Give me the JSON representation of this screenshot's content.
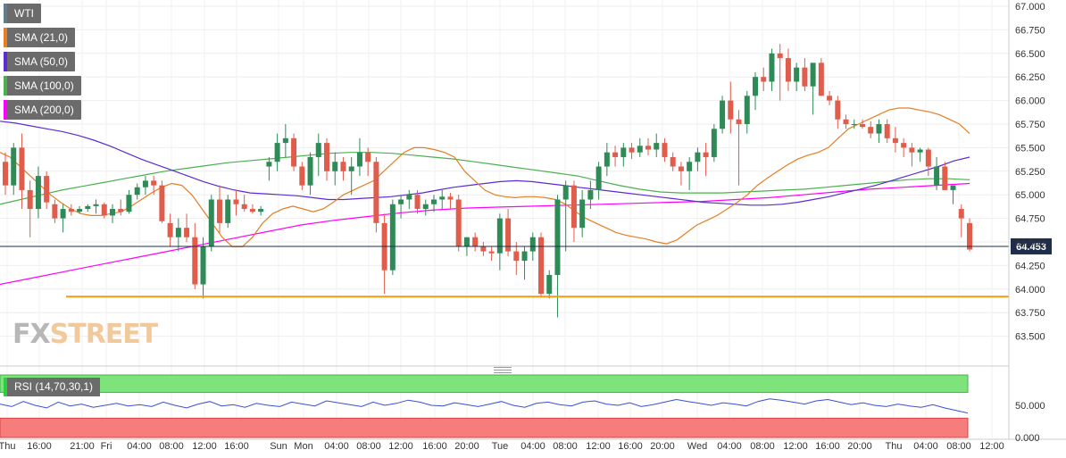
{
  "legend": [
    {
      "label": "WTI",
      "color": "#607d8b"
    },
    {
      "label": "SMA (21,0)",
      "color": "#e67e22"
    },
    {
      "label": "SMA (50,0)",
      "color": "#5b2bd6"
    },
    {
      "label": "SMA (100,0)",
      "color": "#4caf50"
    },
    {
      "label": "SMA (200,0)",
      "color": "#ff00ff"
    }
  ],
  "watermark": {
    "fx": "FX",
    "street": "STREET"
  },
  "chart_data": [
    {
      "type": "candlestick",
      "title": "WTI",
      "ylim": [
        63.25,
        67.0
      ],
      "yticks": [
        "63.500",
        "63.750",
        "64.000",
        "64.250",
        "64.500",
        "64.750",
        "65.000",
        "65.250",
        "65.500",
        "65.750",
        "66.000",
        "66.250",
        "66.500",
        "66.750",
        "67.000"
      ],
      "last_price": "64.453",
      "support_level": 63.92,
      "colors": {
        "up": "#2e8b57",
        "down": "#e05c4b",
        "sma21": "#e67e22",
        "sma50": "#5b2bd6",
        "sma100": "#4caf50",
        "sma200": "#ff00ff",
        "support": "#f39c12"
      },
      "candles": [
        [
          65.35,
          65.45,
          65.0,
          65.1
        ],
        [
          65.1,
          65.55,
          65.0,
          65.5
        ],
        [
          65.5,
          65.65,
          64.85,
          65.05
        ],
        [
          65.05,
          65.15,
          64.55,
          64.85
        ],
        [
          64.85,
          65.3,
          64.75,
          65.2
        ],
        [
          65.2,
          65.25,
          64.85,
          64.92
        ],
        [
          64.9,
          64.95,
          64.7,
          64.75
        ],
        [
          64.75,
          64.9,
          64.6,
          64.85
        ],
        [
          64.85,
          64.9,
          64.78,
          64.82
        ],
        [
          64.82,
          64.88,
          64.8,
          64.85
        ],
        [
          64.85,
          64.9,
          64.82,
          64.88
        ],
        [
          64.88,
          64.95,
          64.8,
          64.9
        ],
        [
          64.9,
          64.92,
          64.75,
          64.78
        ],
        [
          64.78,
          64.9,
          64.7,
          64.85
        ],
        [
          64.85,
          64.95,
          64.78,
          64.82
        ],
        [
          64.82,
          65.05,
          64.8,
          65.0
        ],
        [
          65.0,
          65.12,
          64.95,
          65.08
        ],
        [
          65.08,
          65.2,
          65.0,
          65.15
        ],
        [
          65.15,
          65.2,
          65.0,
          65.1
        ],
        [
          65.1,
          65.15,
          64.7,
          64.72
        ],
        [
          64.7,
          64.8,
          64.45,
          64.55
        ],
        [
          64.55,
          64.75,
          64.4,
          64.65
        ],
        [
          64.65,
          64.8,
          64.5,
          64.55
        ],
        [
          64.55,
          64.7,
          64.0,
          64.05
        ],
        [
          64.05,
          64.55,
          63.9,
          64.45
        ],
        [
          64.45,
          65.0,
          64.4,
          64.95
        ],
        [
          64.95,
          65.1,
          64.6,
          64.7
        ],
        [
          64.7,
          65.0,
          64.65,
          64.95
        ],
        [
          64.95,
          65.05,
          64.78,
          64.9
        ],
        [
          64.9,
          65.0,
          64.82,
          64.85
        ],
        [
          64.85,
          64.9,
          64.8,
          64.82
        ],
        [
          64.82,
          64.88,
          64.78,
          64.85
        ],
        [
          65.3,
          65.4,
          65.15,
          65.35
        ],
        [
          65.35,
          65.65,
          65.25,
          65.55
        ],
        [
          65.55,
          65.75,
          65.4,
          65.6
        ],
        [
          65.6,
          65.65,
          65.25,
          65.3
        ],
        [
          65.3,
          65.35,
          65.05,
          65.1
        ],
        [
          65.1,
          65.45,
          65.0,
          65.4
        ],
        [
          65.4,
          65.65,
          65.2,
          65.55
        ],
        [
          65.55,
          65.6,
          65.15,
          65.25
        ],
        [
          65.25,
          65.45,
          65.1,
          65.35
        ],
        [
          65.35,
          65.4,
          65.15,
          65.25
        ],
        [
          65.25,
          65.4,
          65.0,
          65.3
        ],
        [
          65.3,
          65.6,
          65.2,
          65.45
        ],
        [
          65.45,
          65.5,
          65.2,
          65.35
        ],
        [
          65.35,
          65.4,
          64.6,
          64.7
        ],
        [
          64.7,
          64.8,
          63.95,
          64.2
        ],
        [
          64.2,
          64.95,
          64.15,
          64.9
        ],
        [
          64.9,
          65.0,
          64.75,
          64.95
        ],
        [
          64.95,
          65.05,
          64.85,
          65.0
        ],
        [
          65.0,
          65.05,
          64.8,
          64.85
        ],
        [
          64.85,
          64.95,
          64.78,
          64.9
        ],
        [
          64.9,
          65.0,
          64.82,
          64.95
        ],
        [
          64.95,
          65.05,
          64.85,
          64.98
        ],
        [
          64.98,
          65.02,
          64.85,
          64.95
        ],
        [
          64.95,
          65.0,
          64.4,
          64.45
        ],
        [
          64.45,
          64.55,
          64.35,
          64.55
        ],
        [
          64.55,
          64.6,
          64.4,
          64.45
        ],
        [
          64.45,
          64.5,
          64.35,
          64.4
        ],
        [
          64.4,
          64.45,
          64.3,
          64.38
        ],
        [
          64.38,
          64.8,
          64.2,
          64.75
        ],
        [
          64.75,
          64.85,
          64.35,
          64.4
        ],
        [
          64.4,
          64.5,
          64.15,
          64.3
        ],
        [
          64.3,
          64.45,
          64.1,
          64.4
        ],
        [
          64.4,
          64.6,
          64.3,
          64.55
        ],
        [
          64.55,
          64.6,
          63.92,
          63.95
        ],
        [
          63.95,
          64.2,
          63.9,
          64.15
        ],
        [
          64.15,
          65.0,
          63.7,
          64.95
        ],
        [
          64.95,
          65.15,
          64.4,
          65.1
        ],
        [
          65.1,
          65.15,
          64.5,
          64.65
        ],
        [
          64.65,
          65.05,
          64.55,
          64.95
        ],
        [
          64.95,
          65.15,
          64.85,
          65.05
        ],
        [
          65.05,
          65.35,
          64.95,
          65.3
        ],
        [
          65.3,
          65.55,
          65.2,
          65.45
        ],
        [
          65.45,
          65.52,
          65.3,
          65.4
        ],
        [
          65.4,
          65.55,
          65.3,
          65.5
        ],
        [
          65.5,
          65.55,
          65.38,
          65.45
        ],
        [
          65.45,
          65.6,
          65.4,
          65.52
        ],
        [
          65.52,
          65.6,
          65.42,
          65.48
        ],
        [
          65.48,
          65.65,
          65.4,
          65.55
        ],
        [
          65.55,
          65.6,
          65.35,
          65.4
        ],
        [
          65.4,
          65.45,
          65.25,
          65.3
        ],
        [
          65.3,
          65.35,
          65.1,
          65.25
        ],
        [
          65.25,
          65.4,
          65.05,
          65.35
        ],
        [
          65.35,
          65.5,
          65.25,
          65.45
        ],
        [
          65.45,
          65.55,
          65.2,
          65.4
        ],
        [
          65.4,
          65.75,
          65.35,
          65.7
        ],
        [
          65.7,
          66.05,
          65.65,
          66.0
        ],
        [
          66.0,
          66.2,
          65.65,
          65.8
        ],
        [
          65.8,
          65.9,
          65.1,
          65.75
        ],
        [
          65.75,
          66.1,
          65.65,
          66.05
        ],
        [
          66.05,
          66.3,
          65.9,
          66.25
        ],
        [
          66.25,
          66.35,
          66.1,
          66.2
        ],
        [
          66.2,
          66.55,
          66.1,
          66.5
        ],
        [
          66.5,
          66.6,
          66.0,
          66.45
        ],
        [
          66.45,
          66.55,
          66.1,
          66.2
        ],
        [
          66.2,
          66.4,
          66.1,
          66.35
        ],
        [
          66.35,
          66.45,
          66.1,
          66.15
        ],
        [
          66.15,
          66.4,
          65.85,
          66.4
        ],
        [
          66.4,
          66.45,
          66.05,
          66.05
        ],
        [
          66.05,
          66.1,
          65.95,
          66.0
        ],
        [
          66.0,
          66.05,
          65.7,
          65.8
        ],
        [
          65.8,
          65.85,
          65.7,
          65.75
        ],
        [
          65.75,
          65.8,
          65.7,
          65.75
        ],
        [
          65.75,
          65.8,
          65.7,
          65.72
        ],
        [
          65.72,
          65.78,
          65.6,
          65.65
        ],
        [
          65.65,
          65.8,
          65.55,
          65.75
        ],
        [
          65.75,
          65.8,
          65.55,
          65.6
        ],
        [
          65.6,
          65.72,
          65.45,
          65.55
        ],
        [
          65.55,
          65.6,
          65.4,
          65.5
        ],
        [
          65.5,
          65.55,
          65.3,
          65.45
        ],
        [
          65.45,
          65.5,
          65.35,
          65.48
        ],
        [
          65.48,
          65.5,
          65.2,
          65.3
        ],
        [
          65.1,
          65.4,
          65.05,
          65.3
        ],
        [
          65.3,
          65.35,
          65.05,
          65.05
        ],
        [
          65.05,
          65.1,
          64.9,
          65.1
        ],
        [
          64.85,
          64.9,
          64.55,
          64.75
        ],
        [
          64.7,
          64.75,
          64.4,
          64.42
        ]
      ],
      "sma21": [
        65.45,
        65.4,
        65.3,
        65.2,
        65.1,
        65.0,
        64.92,
        64.85,
        64.8,
        64.78,
        64.78,
        64.8,
        64.82,
        64.88,
        64.95,
        65.02,
        65.08,
        65.12,
        65.1,
        65.0,
        64.85,
        64.7,
        64.55,
        64.45,
        64.45,
        64.55,
        64.7,
        64.8,
        64.85,
        64.88,
        64.85,
        64.82,
        64.85,
        64.92,
        65.0,
        65.05,
        65.1,
        65.15,
        65.25,
        65.35,
        65.45,
        65.5,
        65.5,
        65.48,
        65.45,
        65.4,
        65.25,
        65.15,
        65.05,
        65.0,
        64.98,
        64.97,
        64.98,
        64.98,
        64.97,
        64.95,
        64.9,
        64.82,
        64.75,
        64.7,
        64.65,
        64.6,
        64.57,
        64.55,
        64.53,
        64.5,
        64.48,
        64.52,
        64.6,
        64.68,
        64.73,
        64.78,
        64.85,
        64.92,
        65.0,
        65.1,
        65.18,
        65.25,
        65.32,
        65.38,
        65.42,
        65.45,
        65.5,
        65.6,
        65.7,
        65.75,
        65.8,
        65.85,
        65.9,
        65.92,
        65.92,
        65.9,
        65.88,
        65.85,
        65.8,
        65.75,
        65.65
      ],
      "sma50": [
        65.78,
        65.76,
        65.73,
        65.7,
        65.67,
        65.63,
        65.58,
        65.52,
        65.45,
        65.38,
        65.32,
        65.26,
        65.2,
        65.14,
        65.09,
        65.05,
        65.02,
        65.01,
        65.0,
        64.99,
        64.97,
        64.95,
        64.95,
        64.96,
        64.97,
        64.98,
        65.0,
        65.02,
        65.05,
        65.08,
        65.1,
        65.12,
        65.14,
        65.15,
        65.14,
        65.12,
        65.1,
        65.08,
        65.06,
        65.04,
        65.02,
        65.0,
        64.98,
        64.96,
        64.94,
        64.92,
        64.91,
        64.9,
        64.89,
        64.89,
        64.9,
        64.92,
        64.95,
        64.98,
        65.02,
        65.06,
        65.1,
        65.15,
        65.2,
        65.25,
        65.3,
        65.36,
        65.4
      ],
      "sma100": [
        64.9,
        64.95,
        65.0,
        65.05,
        65.09,
        65.13,
        65.17,
        65.21,
        65.25,
        65.28,
        65.31,
        65.34,
        65.36,
        65.38,
        65.4,
        65.42,
        65.44,
        65.45,
        65.45,
        65.44,
        65.42,
        65.4,
        65.38,
        65.35,
        65.32,
        65.29,
        65.26,
        65.23,
        65.2,
        65.15,
        65.1,
        65.06,
        65.03,
        65.02,
        65.02,
        65.02,
        65.03,
        65.04,
        65.05,
        65.06,
        65.08,
        65.1,
        65.12,
        65.14,
        65.16,
        65.17,
        65.17,
        65.16
      ],
      "sma200": [
        64.05,
        64.12,
        64.19,
        64.26,
        64.33,
        64.4,
        64.47,
        64.54,
        64.61,
        64.68,
        64.73,
        64.77,
        64.81,
        64.84,
        64.86,
        64.87,
        64.88,
        64.89,
        64.9,
        64.91,
        64.92,
        64.93,
        64.95,
        64.97,
        65.0,
        65.03,
        65.06,
        65.08,
        65.1,
        65.12
      ]
    },
    {
      "type": "line",
      "title": "RSI (14,70,30,1)",
      "ylim": [
        0,
        100
      ],
      "yticks": [
        "0.000",
        "50.000"
      ],
      "overbought": 70,
      "oversold": 30,
      "values": [
        52,
        48,
        56,
        50,
        46,
        55,
        49,
        52,
        47,
        50,
        53,
        49,
        51,
        48,
        55,
        50,
        46,
        52,
        56,
        49,
        51,
        47,
        53,
        50,
        48,
        55,
        52,
        49,
        57,
        54,
        51,
        48,
        55,
        50,
        53,
        58,
        55,
        50,
        49,
        54,
        51,
        48,
        52,
        56,
        50,
        47,
        53,
        55,
        51,
        49,
        55,
        57,
        52,
        50,
        54,
        48,
        51,
        55,
        59,
        56,
        53,
        50,
        54,
        52,
        49,
        56,
        60,
        58,
        55,
        52,
        57,
        59,
        55,
        51,
        54,
        50,
        48,
        52,
        49,
        47,
        51,
        46,
        42,
        38
      ]
    },
    {
      "type": "time-axis",
      "xticks": [
        "Thu",
        "16:00",
        "21:00",
        "Fri",
        "04:00",
        "08:00",
        "12:00",
        "16:00",
        "Sun",
        "Mon",
        "04:00",
        "08:00",
        "12:00",
        "16:00",
        "20:00",
        "Tue",
        "04:00",
        "08:00",
        "12:00",
        "16:00",
        "20:00",
        "Wed",
        "04:00",
        "08:00",
        "12:00",
        "16:00",
        "20:00",
        "Thu",
        "04:00",
        "08:00",
        "12:00"
      ]
    }
  ]
}
